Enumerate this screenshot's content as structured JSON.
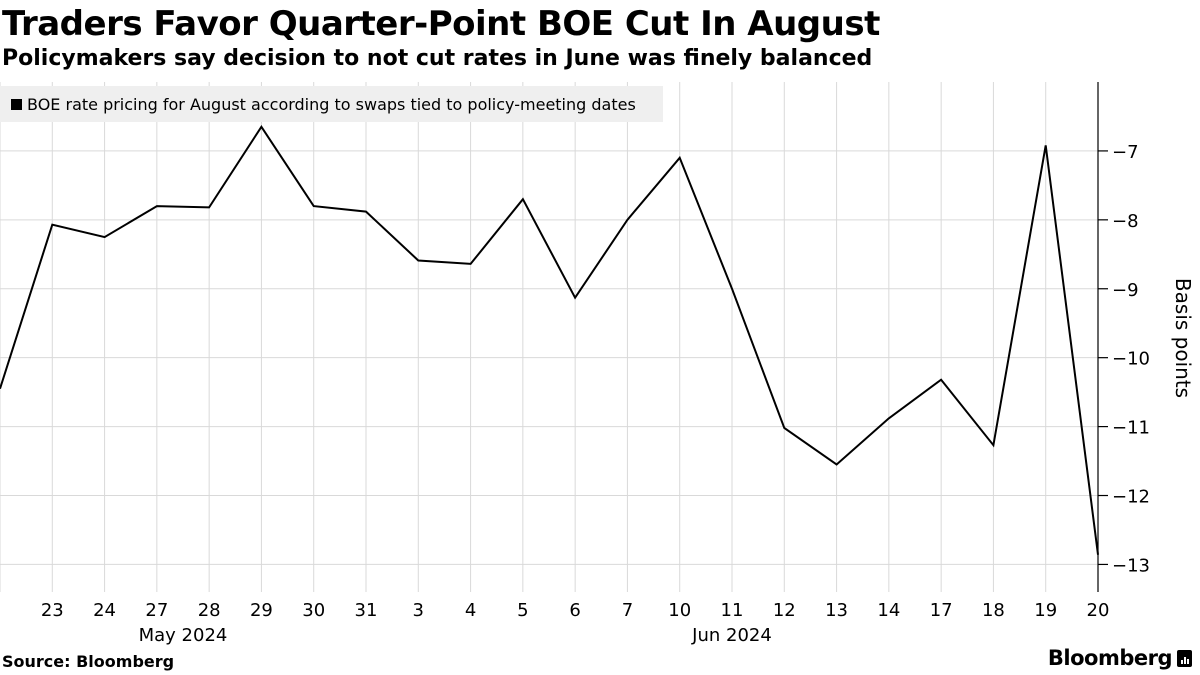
{
  "title": "Traders Favor Quarter-Point BOE Cut In August",
  "subtitle": "Policymakers say decision to not cut rates in June was finely balanced",
  "source": "Source: Bloomberg",
  "brand": "Bloomberg",
  "brand_icon": "bar-chart-icon",
  "colors": {
    "line": "#000000",
    "grid": "#d9d9d9",
    "legend_bg": "#efefef"
  },
  "chart_data": {
    "type": "line",
    "title": "Traders Favor Quarter-Point BOE Cut In August",
    "subtitle": "Policymakers say decision to not cut rates in June was finely balanced",
    "xlabel": "",
    "ylabel": "Basis points",
    "y_axis_side": "right",
    "ylim": [
      -13.4,
      -6.0
    ],
    "yticks": [
      -7,
      -8,
      -9,
      -10,
      -11,
      -12,
      -13
    ],
    "grid": true,
    "legend_position": "top-left",
    "x": [
      "2024-05-22",
      "2024-05-23",
      "2024-05-24",
      "2024-05-27",
      "2024-05-28",
      "2024-05-29",
      "2024-05-30",
      "2024-05-31",
      "2024-06-03",
      "2024-06-04",
      "2024-06-05",
      "2024-06-06",
      "2024-06-07",
      "2024-06-10",
      "2024-06-11",
      "2024-06-12",
      "2024-06-13",
      "2024-06-14",
      "2024-06-17",
      "2024-06-18",
      "2024-06-19",
      "2024-06-20"
    ],
    "x_tick_labels": [
      "23",
      "24",
      "27",
      "28",
      "29",
      "30",
      "31",
      "3",
      "4",
      "5",
      "6",
      "7",
      "10",
      "11",
      "12",
      "13",
      "14",
      "17",
      "18",
      "19",
      "20"
    ],
    "month_labels": [
      "May 2024",
      "Jun 2024"
    ],
    "series": [
      {
        "name": "BOE rate pricing for August according to swaps tied to policy-meeting dates",
        "values": [
          -10.45,
          -8.07,
          -8.25,
          -7.8,
          -7.82,
          -6.65,
          -7.8,
          -7.88,
          -8.59,
          -8.64,
          -7.7,
          -9.13,
          -8.0,
          -7.1,
          -9.0,
          -11.02,
          -11.55,
          -10.88,
          -10.32,
          -11.27,
          -6.92,
          -12.86
        ]
      }
    ]
  }
}
